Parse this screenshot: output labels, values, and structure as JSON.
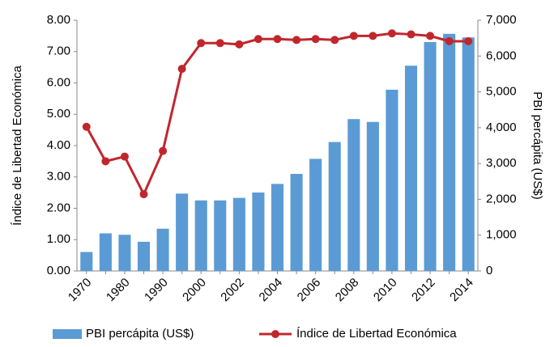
{
  "chart_data": {
    "type": "bar-line",
    "categories": [
      "1970",
      null,
      "1980",
      null,
      "1990",
      null,
      "2000",
      null,
      "2002",
      null,
      "2004",
      null,
      "2006",
      null,
      "2008",
      null,
      "2010",
      null,
      "2012",
      null,
      "2014"
    ],
    "series": [
      {
        "name": "PBI percápita (US$)",
        "type": "bar",
        "axis": "y2",
        "color": "#5b9bd5",
        "values": [
          530,
          1050,
          1010,
          815,
          1180,
          2160,
          1970,
          1970,
          2040,
          2190,
          2430,
          2710,
          3130,
          3600,
          4240,
          4160,
          5060,
          5730,
          6390,
          6620,
          6520
        ]
      },
      {
        "name": "Índice de Libertad Económica",
        "type": "line",
        "axis": "y",
        "color": "#c0272d",
        "values": [
          4.6,
          3.5,
          3.65,
          2.45,
          3.83,
          6.45,
          7.27,
          7.27,
          7.23,
          7.4,
          7.4,
          7.37,
          7.4,
          7.37,
          7.5,
          7.5,
          7.58,
          7.55,
          7.5,
          7.33,
          7.33
        ]
      }
    ],
    "y_label": "Índice de Libertad Económica",
    "y2_label": "PBI percápita (US$)",
    "ylim": [
      0,
      8
    ],
    "yticks": [
      {
        "value": 0,
        "label": "0.00"
      },
      {
        "value": 1,
        "label": "1.00"
      },
      {
        "value": 2,
        "label": "2.00"
      },
      {
        "value": 3,
        "label": "3.00"
      },
      {
        "value": 4,
        "label": "4.00"
      },
      {
        "value": 5,
        "label": "5.00"
      },
      {
        "value": 6,
        "label": "6.00"
      },
      {
        "value": 7,
        "label": "7.00"
      },
      {
        "value": 8,
        "label": "8.00"
      }
    ],
    "y2lim": [
      0,
      7000
    ],
    "y2ticks": [
      0,
      {
        "value": 1000,
        "label": "1,000"
      },
      {
        "value": 2000,
        "label": "2,000"
      },
      {
        "value": 3000,
        "label": "3,000"
      },
      {
        "value": 4000,
        "label": "4,000"
      },
      {
        "value": 5000,
        "label": "5,000"
      },
      {
        "value": 6000,
        "label": "6,000"
      },
      {
        "value": 7000,
        "label": "7,000"
      }
    ],
    "legend": "bottom"
  }
}
